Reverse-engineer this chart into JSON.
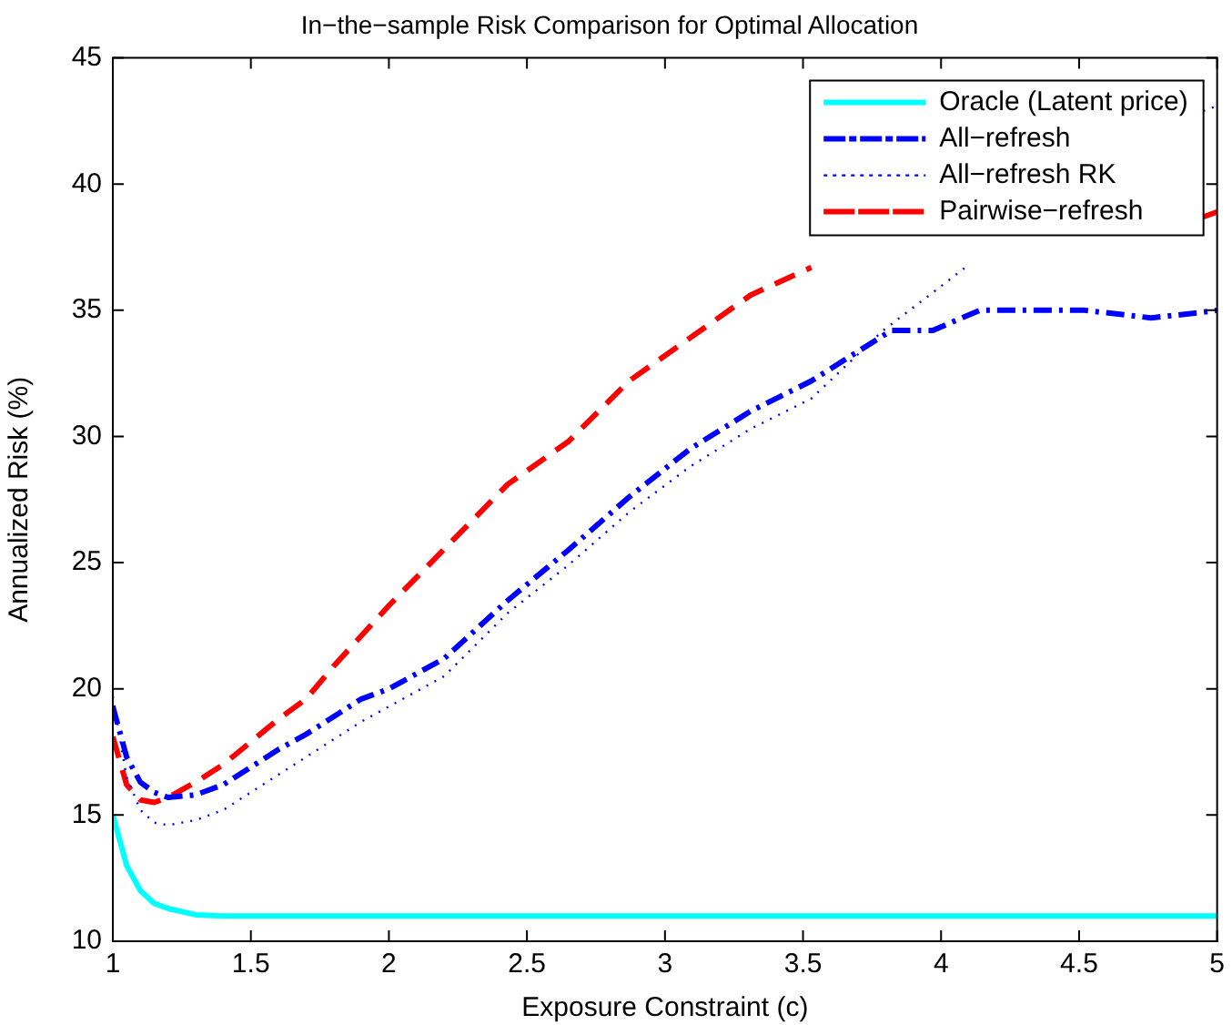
{
  "chart_data": {
    "type": "line",
    "title": "In−the−sample Risk Comparison for Optimal Allocation",
    "xlabel": "Exposure Constraint (c)",
    "ylabel": "Annualized Risk (%)",
    "xlim": [
      1,
      5
    ],
    "xticks": [
      1,
      1.5,
      2,
      2.5,
      3,
      3.5,
      4,
      4.5,
      5
    ],
    "ylim": [
      10,
      45
    ],
    "yticks": [
      10,
      15,
      20,
      25,
      30,
      35,
      40,
      45
    ],
    "grid": false,
    "legend": "top right",
    "marker": "none",
    "series": [
      {
        "name": "Oracle (Latent price)",
        "color": "#00ffff",
        "line_style": "solid",
        "x": [
          1,
          1.05,
          1.1,
          1.15,
          1.2,
          1.3,
          1.4,
          2,
          3,
          4,
          5
        ],
        "values": [
          15,
          13,
          12,
          11.5,
          11.3,
          11.05,
          11,
          11,
          11,
          11,
          11
        ]
      },
      {
        "name": "All−refresh",
        "color": "#0000ff",
        "line_style": "dashdot",
        "x": [
          1,
          1.05,
          1.1,
          1.15,
          1.2,
          1.3,
          1.4,
          1.5,
          1.6,
          1.7,
          1.8,
          1.9,
          2,
          2.2,
          2.43,
          2.65,
          2.87,
          3.09,
          3.31,
          3.53,
          3.66,
          3.82,
          3.97,
          4.14,
          4.52,
          4.76,
          4.93,
          5
        ],
        "values": [
          19.3,
          17.3,
          16.3,
          15.9,
          15.7,
          15.8,
          16.2,
          16.9,
          17.6,
          18.2,
          18.9,
          19.6,
          20,
          21.2,
          23.5,
          25.5,
          27.6,
          29.5,
          31,
          32.2,
          33.1,
          34.2,
          34.2,
          35,
          35,
          34.7,
          34.9,
          35
        ]
      },
      {
        "name": "All−refresh RK",
        "color": "#0000ff",
        "line_style": "dotted",
        "x": [
          1,
          1.05,
          1.1,
          1.15,
          1.2,
          1.3,
          1.4,
          1.5,
          1.6,
          1.7,
          1.8,
          1.9,
          2,
          2.2,
          2.43,
          2.65,
          2.87,
          3.09,
          3.31,
          3.53,
          3.79,
          3.97,
          4.1,
          4.2,
          4.95,
          5
        ],
        "values": [
          19.7,
          16.5,
          15.2,
          14.7,
          14.6,
          14.8,
          15.2,
          15.9,
          16.6,
          17.3,
          18,
          18.7,
          19.3,
          20.5,
          23,
          24.9,
          27,
          28.8,
          30.3,
          31.5,
          34.2,
          35.7,
          36.8,
          null,
          42.9,
          43.1
        ]
      },
      {
        "name": "Pairwise−refresh",
        "color": "#ff0000",
        "line_style": "dashed",
        "x": [
          1,
          1.05,
          1.1,
          1.15,
          1.2,
          1.3,
          1.4,
          1.5,
          1.6,
          1.7,
          1.8,
          1.9,
          2,
          2.43,
          2.65,
          2.87,
          3.09,
          3.31,
          3.53,
          3.6,
          4.95,
          5
        ],
        "values": [
          18.1,
          16.2,
          15.6,
          15.5,
          15.7,
          16.3,
          17,
          17.9,
          18.8,
          19.6,
          20.9,
          22.1,
          23.3,
          28.1,
          29.8,
          32.2,
          33.9,
          35.6,
          36.7,
          null,
          38.7,
          38.9
        ]
      }
    ]
  }
}
